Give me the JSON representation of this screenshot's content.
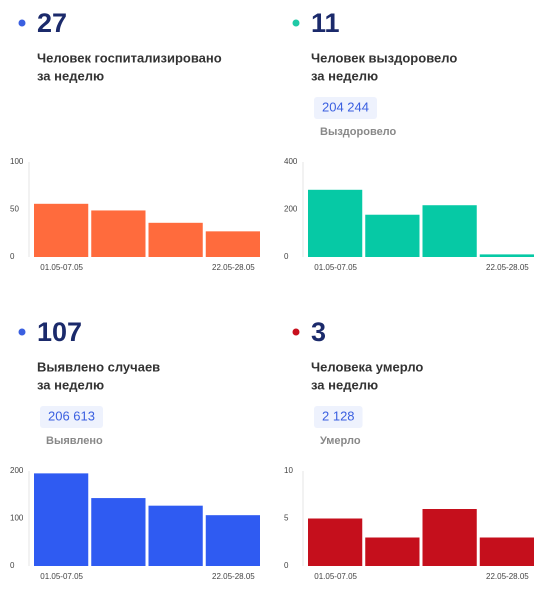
{
  "chart_data": [
    {
      "type": "bar",
      "headline": 27,
      "dot_color": "#3a5fe0",
      "title_lines": [
        "Человек госпитализировано",
        "за неделю"
      ],
      "categories": [
        "01.05-07.05",
        null,
        null,
        "22.05-28.05"
      ],
      "values": [
        56,
        49,
        36,
        27
      ],
      "color": "#ff6b3d",
      "ylim": [
        0,
        100
      ],
      "yticks": [
        0,
        50,
        100
      ]
    },
    {
      "type": "bar",
      "headline": 11,
      "dot_color": "#1fc9a6",
      "title_lines": [
        "Человек выздоровело",
        "за неделю"
      ],
      "total": "204 244",
      "total_label": "Выздоровело",
      "categories": [
        "01.05-07.05",
        null,
        null,
        "22.05-28.05"
      ],
      "values": [
        283,
        178,
        218,
        11
      ],
      "color": "#06c9a5",
      "ylim": [
        0,
        400
      ],
      "yticks": [
        0,
        200,
        400
      ]
    },
    {
      "type": "bar",
      "headline": 107,
      "dot_color": "#3a5fe0",
      "title_lines": [
        "Выявлено случаев",
        "за неделю"
      ],
      "total": "206 613",
      "total_label": "Выявлено",
      "categories": [
        "01.05-07.05",
        null,
        null,
        "22.05-28.05"
      ],
      "values": [
        195,
        143,
        127,
        107
      ],
      "color": "#2f5bf2",
      "ylim": [
        0,
        200
      ],
      "yticks": [
        0,
        100,
        200
      ]
    },
    {
      "type": "bar",
      "headline": 3,
      "dot_color": "#c8101d",
      "title_lines": [
        "Человека умерло",
        "за неделю"
      ],
      "total": "2 128",
      "total_label": "Умерло",
      "categories": [
        "01.05-07.05",
        null,
        null,
        "22.05-28.05"
      ],
      "values": [
        5,
        3,
        6,
        3
      ],
      "color": "#c50f1c",
      "ylim": [
        0,
        10
      ],
      "yticks": [
        0,
        5,
        10
      ]
    }
  ]
}
